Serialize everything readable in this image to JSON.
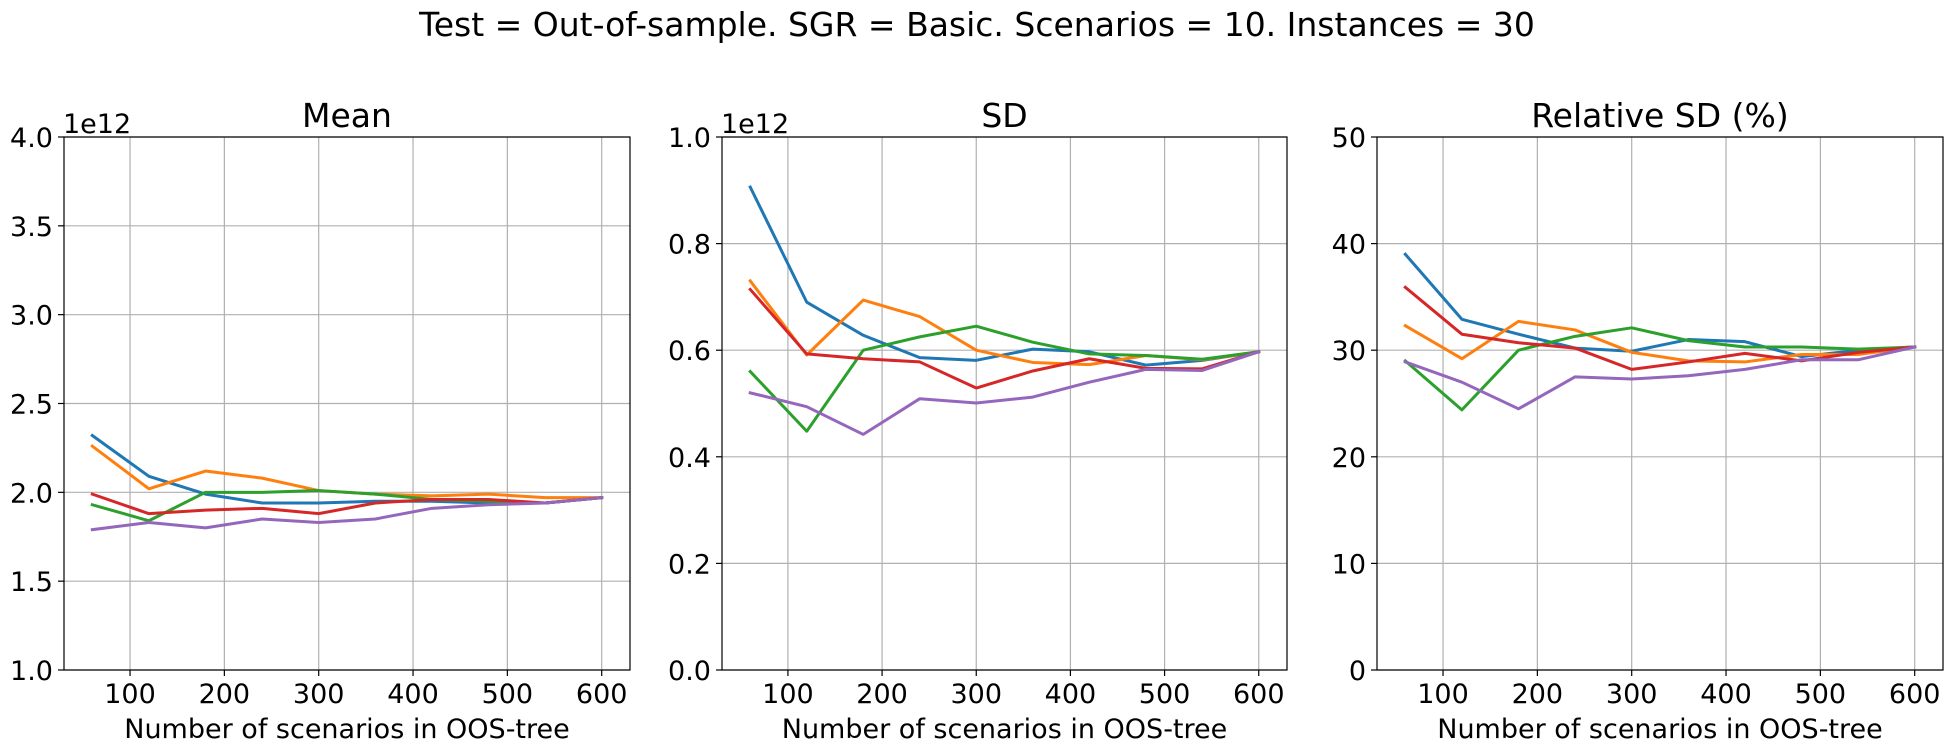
{
  "suptitle": "Test = Out-of-sample. SGR = Basic. Scenarios = 10. Instances = 30",
  "colors": [
    "#1f77b4",
    "#ff7f0e",
    "#2ca02c",
    "#d62728",
    "#9467bd"
  ],
  "chart_data": [
    {
      "type": "line",
      "title": "Mean",
      "xlabel": "Number of scenarios in OOS-tree",
      "ylabel": "",
      "y_offset_label": "1e12",
      "xlim": [
        30,
        630
      ],
      "ylim": [
        1.0,
        4.0
      ],
      "xticks": [
        100,
        200,
        300,
        400,
        500,
        600
      ],
      "yticks": [
        1.0,
        1.5,
        2.0,
        2.5,
        3.0,
        3.5,
        4.0
      ],
      "ytick_labels": [
        "1.0",
        "1.5",
        "2.0",
        "2.5",
        "3.0",
        "3.5",
        "4.0"
      ],
      "grid": true,
      "x": [
        60,
        120,
        180,
        240,
        300,
        360,
        420,
        480,
        540,
        600
      ],
      "series": [
        {
          "values": [
            2.32,
            2.09,
            1.99,
            1.94,
            1.94,
            1.95,
            1.95,
            1.94,
            1.94,
            1.97
          ]
        },
        {
          "values": [
            2.26,
            2.02,
            2.12,
            2.08,
            2.01,
            1.99,
            1.98,
            1.99,
            1.97,
            1.97
          ]
        },
        {
          "values": [
            1.93,
            1.84,
            2.0,
            2.0,
            2.01,
            1.99,
            1.96,
            1.95,
            1.94,
            1.97
          ]
        },
        {
          "values": [
            1.99,
            1.88,
            1.9,
            1.91,
            1.88,
            1.94,
            1.96,
            1.96,
            1.94,
            1.97
          ]
        },
        {
          "values": [
            1.79,
            1.83,
            1.8,
            1.85,
            1.83,
            1.85,
            1.91,
            1.93,
            1.94,
            1.97
          ]
        }
      ]
    },
    {
      "type": "line",
      "title": "SD",
      "xlabel": "Number of scenarios in OOS-tree",
      "ylabel": "",
      "y_offset_label": "1e12",
      "xlim": [
        30,
        630
      ],
      "ylim": [
        0.0,
        1.0
      ],
      "xticks": [
        100,
        200,
        300,
        400,
        500,
        600
      ],
      "yticks": [
        0.0,
        0.2,
        0.4,
        0.6,
        0.8,
        1.0
      ],
      "ytick_labels": [
        "0.0",
        "0.2",
        "0.4",
        "0.6",
        "0.8",
        "1.0"
      ],
      "grid": true,
      "x": [
        60,
        120,
        180,
        240,
        300,
        360,
        420,
        480,
        540,
        600
      ],
      "series": [
        {
          "values": [
            0.906,
            0.69,
            0.628,
            0.586,
            0.581,
            0.602,
            0.597,
            0.572,
            0.581,
            0.597
          ]
        },
        {
          "values": [
            0.73,
            0.591,
            0.694,
            0.663,
            0.6,
            0.577,
            0.573,
            0.59,
            0.582,
            0.597
          ]
        },
        {
          "values": [
            0.56,
            0.448,
            0.6,
            0.625,
            0.645,
            0.615,
            0.593,
            0.59,
            0.583,
            0.597
          ]
        },
        {
          "values": [
            0.714,
            0.593,
            0.584,
            0.578,
            0.529,
            0.561,
            0.584,
            0.566,
            0.565,
            0.597
          ]
        },
        {
          "values": [
            0.52,
            0.494,
            0.442,
            0.509,
            0.501,
            0.512,
            0.54,
            0.564,
            0.562,
            0.597
          ]
        }
      ]
    },
    {
      "type": "line",
      "title": "Relative SD (%)",
      "xlabel": "Number of scenarios in OOS-tree",
      "ylabel": "",
      "y_offset_label": "",
      "xlim": [
        30,
        630
      ],
      "ylim": [
        0,
        50
      ],
      "xticks": [
        100,
        200,
        300,
        400,
        500,
        600
      ],
      "yticks": [
        0,
        10,
        20,
        30,
        40,
        50
      ],
      "ytick_labels": [
        "0",
        "10",
        "20",
        "30",
        "40",
        "50"
      ],
      "grid": true,
      "x": [
        60,
        120,
        180,
        240,
        300,
        360,
        420,
        480,
        540,
        600
      ],
      "series": [
        {
          "values": [
            39.0,
            32.9,
            31.5,
            30.2,
            29.9,
            31.0,
            30.8,
            29.4,
            30.0,
            30.3
          ]
        },
        {
          "values": [
            32.3,
            29.2,
            32.7,
            31.9,
            29.8,
            29.0,
            28.9,
            29.6,
            29.6,
            30.3
          ]
        },
        {
          "values": [
            29.0,
            24.4,
            30.0,
            31.3,
            32.1,
            30.9,
            30.3,
            30.3,
            30.1,
            30.3
          ]
        },
        {
          "values": [
            35.9,
            31.5,
            30.7,
            30.2,
            28.2,
            28.9,
            29.7,
            29.0,
            29.8,
            30.3
          ]
        },
        {
          "values": [
            28.9,
            27.0,
            24.5,
            27.5,
            27.3,
            27.6,
            28.2,
            29.1,
            29.1,
            30.3
          ]
        }
      ]
    }
  ]
}
